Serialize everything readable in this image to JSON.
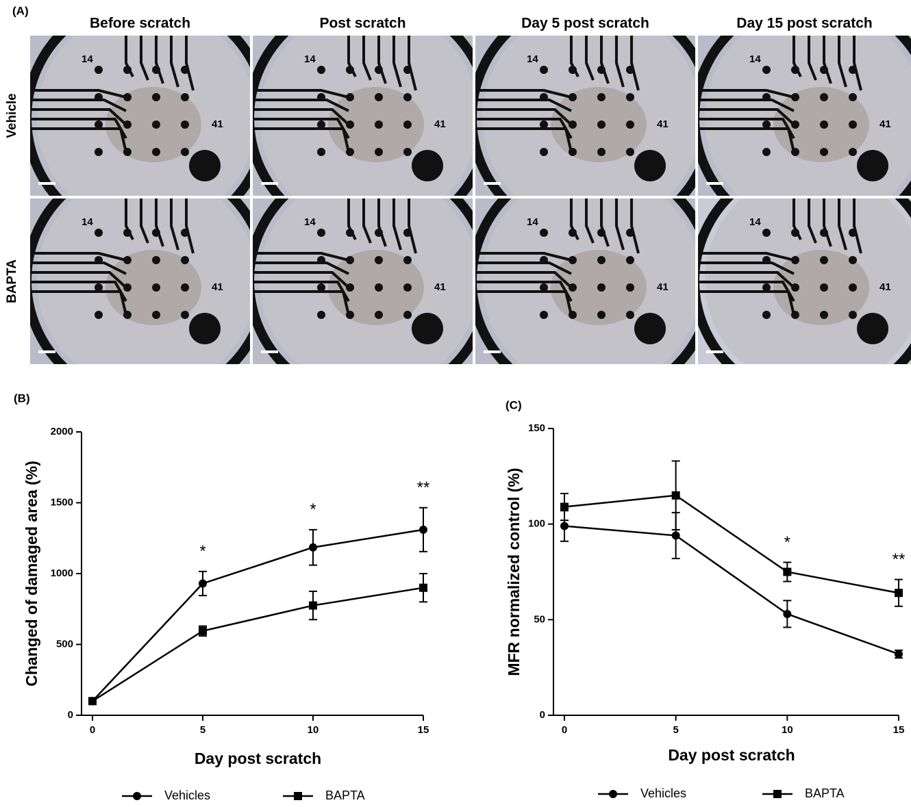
{
  "panel_a": {
    "label": "(A)",
    "columns": [
      "Before scratch",
      "Post scratch",
      "Day 5 post scratch",
      "Day 15 post scratch"
    ],
    "rows": [
      "Vehicle",
      "BAPTA"
    ],
    "electrode_labels": [
      "14",
      "41"
    ]
  },
  "chart_data": [
    {
      "panel_label": "(B)",
      "type": "line",
      "x_label": "Day post scratch",
      "y_label": "Changed of damaged area (%)",
      "x": [
        0,
        5,
        10,
        15
      ],
      "xlim": [
        0,
        15
      ],
      "xticks": [
        0,
        5,
        10,
        15
      ],
      "ylim": [
        0,
        2000
      ],
      "yticks": [
        0,
        500,
        1000,
        1500,
        2000
      ],
      "series": [
        {
          "name": "Vehicles",
          "color": "#000000",
          "marker": "circle",
          "values": [
            100,
            930,
            1185,
            1310
          ],
          "errors": [
            0,
            85,
            125,
            155
          ]
        },
        {
          "name": "BAPTA",
          "color": "#000000",
          "marker": "square",
          "values": [
            100,
            595,
            775,
            900
          ],
          "errors": [
            0,
            35,
            100,
            100
          ]
        }
      ],
      "annotations": [
        {
          "x": 5,
          "text": "*"
        },
        {
          "x": 10,
          "text": "*"
        },
        {
          "x": 15,
          "text": "**"
        }
      ]
    },
    {
      "panel_label": "(C)",
      "type": "line",
      "x_label": "Day post scratch",
      "y_label": "MFR normalized control (%)",
      "x": [
        0,
        5,
        10,
        15
      ],
      "xlim": [
        0,
        15
      ],
      "xticks": [
        0,
        5,
        10,
        15
      ],
      "ylim": [
        0,
        150
      ],
      "yticks": [
        0,
        50,
        100,
        150
      ],
      "series": [
        {
          "name": "Vehicles",
          "color": "#000000",
          "marker": "circle",
          "values": [
            99,
            94,
            53,
            32
          ],
          "errors": [
            8,
            12,
            7,
            2
          ]
        },
        {
          "name": "BAPTA",
          "color": "#000000",
          "marker": "square",
          "values": [
            109,
            115,
            75,
            64
          ],
          "errors": [
            7,
            18,
            5,
            7
          ]
        }
      ],
      "annotations": [
        {
          "x": 10,
          "text": "*"
        },
        {
          "x": 15,
          "text": "**"
        }
      ]
    }
  ]
}
